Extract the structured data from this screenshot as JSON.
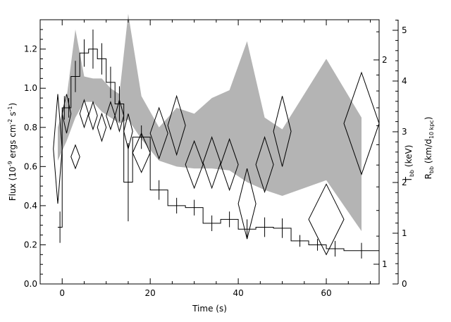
{
  "chart_data": {
    "type": "line",
    "title": "",
    "xlabel": "Time (s)",
    "ylabel_left": {
      "main": "Flux (10",
      "exp1": "-9",
      "mid1": " ergs cm",
      "exp2": "-2",
      "mid2": " s",
      "exp3": "-1",
      "end": ")"
    },
    "ylabel_right_1": {
      "main": "T",
      "sub": "bb",
      "end": " (keV)"
    },
    "ylabel_right_2": {
      "main": "R",
      "sub": "bb",
      "mid": " (km/d",
      "sub2": "10 kpc",
      "end": ")"
    },
    "xlim": [
      -5,
      72
    ],
    "ylim_left": [
      0,
      1.35
    ],
    "x_ticks": [
      0,
      20,
      40,
      60
    ],
    "y_ticks_left": [
      0.0,
      0.2,
      0.4,
      0.6,
      0.8,
      1.0,
      1.2
    ],
    "y_ticks_temp": [
      1,
      2
    ],
    "y_ticks_radius": [
      0,
      1,
      2,
      3,
      4,
      5
    ],
    "y_tick_labels_left": [
      "0.0",
      "0.2",
      "0.4",
      "0.6",
      "0.8",
      "1.0",
      "1.2"
    ],
    "y_tick_labels_temp": [
      "1",
      "2"
    ],
    "y_tick_labels_radius": [
      "0",
      "1",
      "2",
      "3",
      "4",
      "5"
    ],
    "x_tick_labels": [
      "0",
      "20",
      "40",
      "60"
    ],
    "flux_histogram": {
      "edges": [
        -1,
        0,
        1,
        2,
        4,
        6,
        8,
        10,
        12,
        14,
        16,
        20,
        24,
        28,
        32,
        36,
        40,
        44,
        48,
        52,
        56,
        60,
        64,
        72
      ],
      "values": [
        0.29,
        0.9,
        0.9,
        1.06,
        1.18,
        1.2,
        1.15,
        1.03,
        0.92,
        0.52,
        0.75,
        0.48,
        0.4,
        0.39,
        0.31,
        0.33,
        0.28,
        0.29,
        0.285,
        0.22,
        0.2,
        0.18,
        0.17
      ],
      "errors": [
        0.08,
        0.06,
        0.05,
        0.08,
        0.07,
        0.1,
        0.08,
        0.08,
        0.09,
        0.2,
        0.06,
        0.05,
        0.04,
        0.04,
        0.04,
        0.04,
        0.05,
        0.05,
        0.05,
        0.03,
        0.03,
        0.04,
        0.04
      ]
    },
    "temperature_diamonds": {
      "x": [
        -1,
        1,
        3,
        5,
        7,
        9,
        11,
        13,
        15,
        18,
        22,
        26,
        30,
        34,
        38,
        42,
        46,
        50,
        60,
        68
      ],
      "y": [
        0.69,
        0.87,
        0.65,
        0.87,
        0.86,
        0.8,
        0.86,
        0.86,
        0.78,
        0.67,
        0.77,
        0.81,
        0.61,
        0.62,
        0.61,
        0.41,
        0.61,
        0.78,
        0.33,
        0.82
      ],
      "xerr": [
        1,
        1,
        1,
        1,
        1,
        1,
        1,
        1,
        1,
        2,
        2,
        2,
        2,
        2,
        2,
        2,
        2,
        2,
        4,
        4
      ],
      "yerr": [
        0.28,
        0.1,
        0.06,
        0.07,
        0.07,
        0.07,
        0.07,
        0.08,
        0.09,
        0.1,
        0.13,
        0.15,
        0.12,
        0.13,
        0.13,
        0.18,
        0.14,
        0.18,
        0.18,
        0.26
      ]
    },
    "radius_band": {
      "x": [
        -1,
        1,
        3,
        5,
        7,
        9,
        11,
        13,
        15,
        18,
        22,
        26,
        30,
        34,
        38,
        42,
        46,
        50,
        60,
        68
      ],
      "upper": [
        0.8,
        0.95,
        1.3,
        1.06,
        1.05,
        1.05,
        1.0,
        0.97,
        1.38,
        0.96,
        0.8,
        0.9,
        0.87,
        0.95,
        0.99,
        1.24,
        0.85,
        0.79,
        1.15,
        0.85
      ],
      "lower": [
        0.63,
        0.73,
        0.85,
        0.93,
        0.93,
        0.88,
        0.85,
        0.82,
        0.84,
        0.74,
        0.63,
        0.6,
        0.59,
        0.59,
        0.58,
        0.52,
        0.48,
        0.45,
        0.53,
        0.27
      ]
    }
  }
}
